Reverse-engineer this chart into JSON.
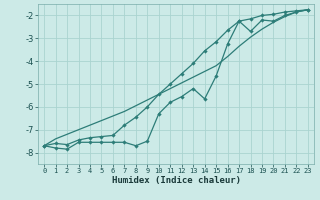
{
  "xlabel": "Humidex (Indice chaleur)",
  "background_color": "#cceae7",
  "grid_color": "#aad4d0",
  "line_color": "#2d7d78",
  "xlim": [
    -0.5,
    23.5
  ],
  "ylim": [
    -8.5,
    -1.5
  ],
  "xticks": [
    0,
    1,
    2,
    3,
    4,
    5,
    6,
    7,
    8,
    9,
    10,
    11,
    12,
    13,
    14,
    15,
    16,
    17,
    18,
    19,
    20,
    21,
    22,
    23
  ],
  "yticks": [
    -8,
    -7,
    -6,
    -5,
    -4,
    -3,
    -2
  ],
  "x_data": [
    0,
    1,
    2,
    3,
    4,
    5,
    6,
    7,
    8,
    9,
    10,
    11,
    12,
    13,
    14,
    15,
    16,
    17,
    18,
    19,
    20,
    21,
    22,
    23
  ],
  "line1_y": [
    -7.7,
    -7.8,
    -7.85,
    -7.55,
    -7.55,
    -7.55,
    -7.55,
    -7.55,
    -7.7,
    -7.5,
    -6.3,
    -5.8,
    -5.55,
    -5.2,
    -5.65,
    -4.65,
    -3.25,
    -2.25,
    -2.7,
    -2.2,
    -2.25,
    -2.0,
    -1.85,
    -1.75
  ],
  "line2_y": [
    -7.7,
    -7.6,
    -7.65,
    -7.45,
    -7.35,
    -7.3,
    -7.25,
    -6.8,
    -6.45,
    -6.0,
    -5.45,
    -5.0,
    -4.55,
    -4.1,
    -3.55,
    -3.15,
    -2.65,
    -2.25,
    -2.15,
    -2.0,
    -1.95,
    -1.85,
    -1.8,
    -1.75
  ],
  "line3_y": [
    -7.7,
    -7.4,
    -7.2,
    -7.0,
    -6.8,
    -6.6,
    -6.4,
    -6.2,
    -5.95,
    -5.7,
    -5.45,
    -5.2,
    -4.95,
    -4.7,
    -4.45,
    -4.2,
    -3.8,
    -3.35,
    -2.95,
    -2.6,
    -2.3,
    -2.05,
    -1.85,
    -1.75
  ]
}
